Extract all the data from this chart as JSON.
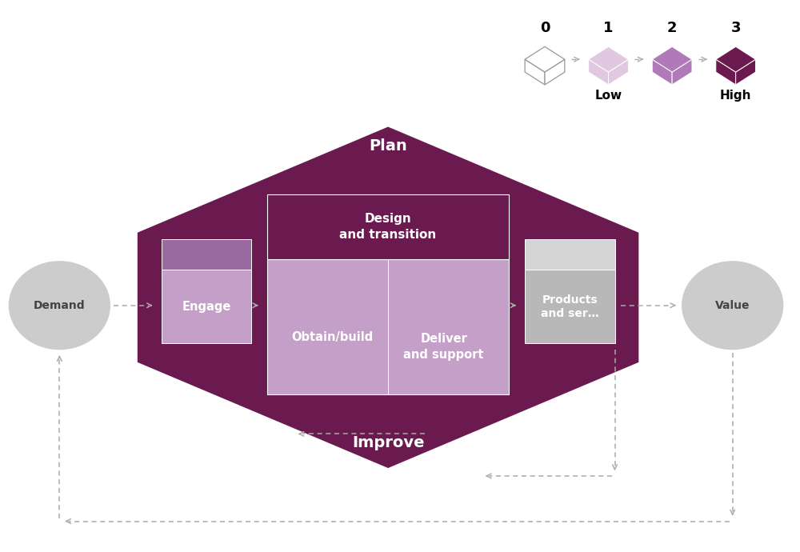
{
  "bg_color": "#ffffff",
  "dark_purple": "#6b1a4f",
  "mid_purple": "#9b6aa0",
  "light_purple": "#c4a0c8",
  "gray_light": "#cccccc",
  "gray_mid": "#b8b8b8",
  "gray_top": "#d4d4d4",
  "arrow_color": "#aaaaaa",
  "white": "#ffffff",
  "text_dark": "#222222",
  "legend_colors_fill": [
    "none",
    "#dfc8e0",
    "#b07ab8",
    "#6b1a4f"
  ],
  "legend_nums": [
    "0",
    "1",
    "2",
    "3"
  ],
  "legend_low": "Low",
  "legend_high": "High",
  "plan_label": "Plan",
  "improve_label": "Improve",
  "engage_label": "Engage",
  "obtain_label": "Obtain/build",
  "deliver_label": "Deliver\nand support",
  "design_label": "Design\nand transition",
  "products_label": "Products\nand ser…",
  "demand_label": "Demand",
  "value_label": "Value"
}
